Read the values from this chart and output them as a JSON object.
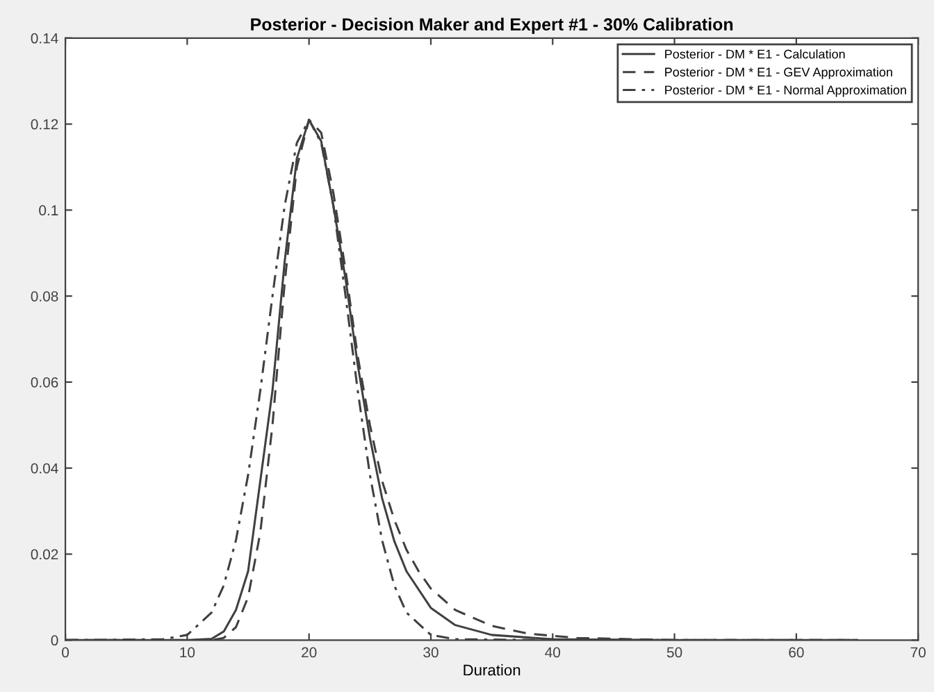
{
  "chart_data": {
    "type": "line",
    "title": "Posterior - Decision Maker and Expert #1 - 30% Calibration",
    "xlabel": "Duration",
    "xlim": [
      0,
      70
    ],
    "ylim": [
      0,
      0.14
    ],
    "xticks": [
      0,
      10,
      20,
      30,
      40,
      50,
      60,
      70
    ],
    "yticks": [
      0,
      0.02,
      0.04,
      0.06,
      0.08,
      0.1,
      0.12,
      0.14
    ],
    "grid": false,
    "legend": "top right",
    "marker": "none",
    "series": [
      {
        "name": "Posterior - DM * E1 - Calculation",
        "color": "#404040",
        "line_style": "solid",
        "x": [
          0,
          10,
          12,
          13,
          14,
          15,
          16,
          17,
          18,
          19,
          20,
          21,
          22,
          23,
          24,
          25,
          26,
          27,
          28,
          30,
          32,
          35,
          40,
          50,
          65
        ],
        "values": [
          0,
          0,
          0.0003,
          0.002,
          0.007,
          0.016,
          0.037,
          0.058,
          0.088,
          0.112,
          0.121,
          0.116,
          0.101,
          0.084,
          0.064,
          0.047,
          0.033,
          0.023,
          0.016,
          0.0075,
          0.0035,
          0.0012,
          0.0002,
          0,
          0
        ]
      },
      {
        "name": "Posterior - DM * E1 - GEV Approximation",
        "color": "#404040",
        "line_style": "dashed",
        "x": [
          0,
          12,
          13,
          14,
          15,
          16,
          17,
          18,
          19,
          20,
          21,
          22,
          23,
          24,
          25,
          26,
          27,
          28,
          29,
          30,
          32,
          35,
          38,
          42,
          50,
          65
        ],
        "values": [
          0,
          0,
          0.0005,
          0.003,
          0.01,
          0.025,
          0.05,
          0.083,
          0.11,
          0.121,
          0.118,
          0.104,
          0.086,
          0.066,
          0.05,
          0.037,
          0.028,
          0.021,
          0.016,
          0.012,
          0.007,
          0.0033,
          0.0015,
          0.0005,
          0,
          0
        ]
      },
      {
        "name": "Posterior - DM * E1 - Normal Approximation",
        "color": "#404040",
        "line_style": "dashdot",
        "x": [
          0,
          8,
          10,
          12,
          13,
          14,
          15,
          16,
          17,
          18,
          19,
          20,
          21,
          22,
          23,
          24,
          25,
          26,
          27,
          28,
          30,
          32,
          40,
          65
        ],
        "values": [
          0,
          0.0002,
          0.0012,
          0.0064,
          0.0127,
          0.0232,
          0.0384,
          0.058,
          0.08,
          0.101,
          0.1156,
          0.121,
          0.1156,
          0.101,
          0.08,
          0.058,
          0.0384,
          0.0232,
          0.0127,
          0.0064,
          0.0012,
          0.0002,
          0,
          0
        ]
      }
    ]
  }
}
